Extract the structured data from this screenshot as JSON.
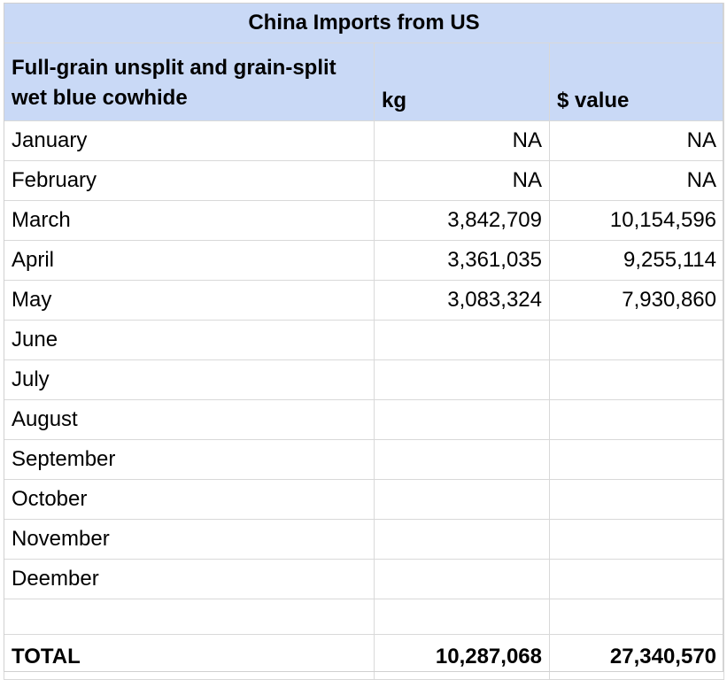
{
  "title": "China Imports from US",
  "headers": {
    "description": "Full-grain unsplit and grain-split wet blue cowhide",
    "kg": "kg",
    "value": "$ value"
  },
  "rows": [
    {
      "month": "January",
      "kg": "NA",
      "value": "NA"
    },
    {
      "month": "February",
      "kg": "NA",
      "value": "NA"
    },
    {
      "month": "March",
      "kg": "3,842,709",
      "value": "10,154,596"
    },
    {
      "month": "April",
      "kg": "3,361,035",
      "value": "9,255,114"
    },
    {
      "month": "May",
      "kg": "3,083,324",
      "value": "7,930,860"
    },
    {
      "month": "June",
      "kg": "",
      "value": ""
    },
    {
      "month": "July",
      "kg": "",
      "value": ""
    },
    {
      "month": "August",
      "kg": "",
      "value": ""
    },
    {
      "month": "September",
      "kg": "",
      "value": ""
    },
    {
      "month": "October",
      "kg": "",
      "value": ""
    },
    {
      "month": "November",
      "kg": "",
      "value": ""
    },
    {
      "month": "Deember",
      "kg": "",
      "value": ""
    }
  ],
  "total": {
    "label": "TOTAL",
    "kg": "10,287,068",
    "value": "27,340,570"
  },
  "colors": {
    "header_fill": "#c9d9f6",
    "gridline": "#d9d9d9"
  }
}
